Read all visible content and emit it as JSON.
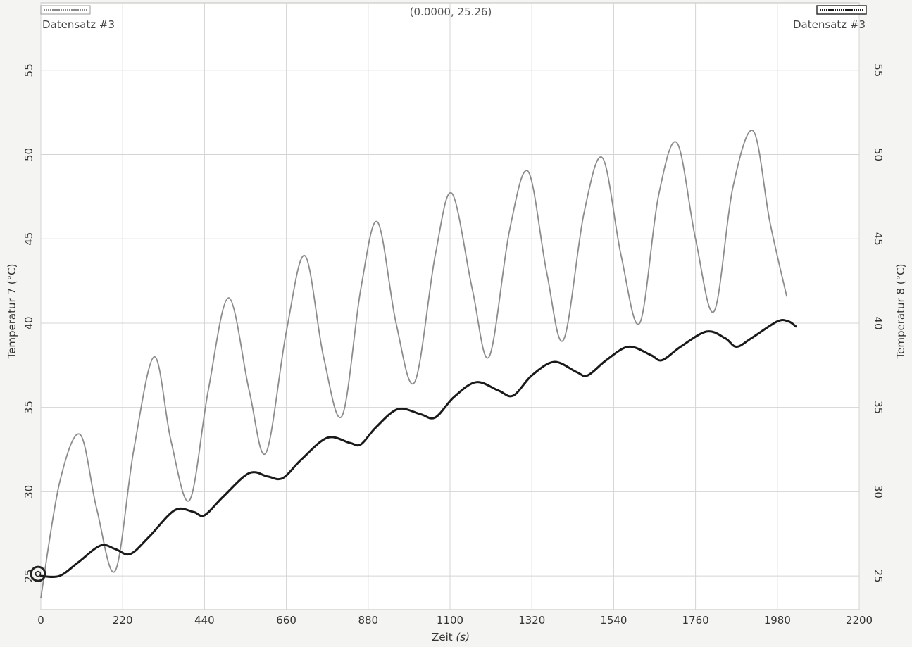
{
  "chart_data": {
    "type": "line",
    "readout": "(0.0000, 25.26)",
    "xlabel": "Zeit",
    "xunit": "(s)",
    "ylabel_left": "Temperatur 7 (°C)",
    "ylabel_right": "Temperatur 8 (°C)",
    "xlim": [
      0,
      2200
    ],
    "ylim_left": [
      23,
      59
    ],
    "ylim_right": [
      23,
      59
    ],
    "x_ticks": [
      0,
      220,
      440,
      660,
      880,
      1100,
      1320,
      1540,
      1760,
      1980,
      2200
    ],
    "y_ticks": [
      25,
      30,
      35,
      40,
      45,
      50,
      55
    ],
    "grid": true,
    "legend_left": "Datensatz #3",
    "legend_right": "Datensatz #3",
    "series": [
      {
        "axis": "left",
        "color": "#8c8c8c",
        "points": [
          [
            0,
            23.7
          ],
          [
            50,
            30.5
          ],
          [
            105,
            33.4
          ],
          [
            150,
            29.0
          ],
          [
            200,
            25.3
          ],
          [
            250,
            32.5
          ],
          [
            305,
            38.0
          ],
          [
            350,
            33.0
          ],
          [
            400,
            29.5
          ],
          [
            450,
            36.0
          ],
          [
            505,
            41.5
          ],
          [
            560,
            36.0
          ],
          [
            605,
            32.3
          ],
          [
            660,
            39.5
          ],
          [
            710,
            44.0
          ],
          [
            760,
            38.0
          ],
          [
            810,
            34.5
          ],
          [
            860,
            42.0
          ],
          [
            905,
            46.0
          ],
          [
            955,
            40.0
          ],
          [
            1005,
            36.5
          ],
          [
            1060,
            44.0
          ],
          [
            1105,
            47.7
          ],
          [
            1160,
            42.0
          ],
          [
            1205,
            38.0
          ],
          [
            1260,
            45.5
          ],
          [
            1310,
            49.0
          ],
          [
            1360,
            43.0
          ],
          [
            1405,
            39.0
          ],
          [
            1460,
            46.5
          ],
          [
            1510,
            49.8
          ],
          [
            1560,
            44.0
          ],
          [
            1610,
            40.0
          ],
          [
            1660,
            47.5
          ],
          [
            1710,
            50.7
          ],
          [
            1760,
            45.0
          ],
          [
            1810,
            40.7
          ],
          [
            1860,
            48.0
          ],
          [
            1915,
            51.4
          ],
          [
            1960,
            46.0
          ],
          [
            2005,
            41.6
          ]
        ]
      },
      {
        "axis": "right",
        "color": "#1a1a1a",
        "points": [
          [
            0,
            25.0
          ],
          [
            50,
            25.0
          ],
          [
            100,
            25.8
          ],
          [
            160,
            26.8
          ],
          [
            200,
            26.6
          ],
          [
            240,
            26.3
          ],
          [
            290,
            27.3
          ],
          [
            360,
            28.9
          ],
          [
            410,
            28.8
          ],
          [
            440,
            28.6
          ],
          [
            490,
            29.7
          ],
          [
            560,
            31.1
          ],
          [
            610,
            30.9
          ],
          [
            650,
            30.8
          ],
          [
            700,
            31.9
          ],
          [
            770,
            33.2
          ],
          [
            830,
            32.9
          ],
          [
            860,
            32.8
          ],
          [
            900,
            33.8
          ],
          [
            960,
            34.9
          ],
          [
            1020,
            34.6
          ],
          [
            1060,
            34.4
          ],
          [
            1110,
            35.6
          ],
          [
            1170,
            36.5
          ],
          [
            1230,
            36.0
          ],
          [
            1270,
            35.7
          ],
          [
            1320,
            36.9
          ],
          [
            1380,
            37.7
          ],
          [
            1440,
            37.1
          ],
          [
            1470,
            36.9
          ],
          [
            1520,
            37.8
          ],
          [
            1580,
            38.6
          ],
          [
            1640,
            38.1
          ],
          [
            1670,
            37.8
          ],
          [
            1720,
            38.6
          ],
          [
            1790,
            39.5
          ],
          [
            1840,
            39.1
          ],
          [
            1870,
            38.6
          ],
          [
            1910,
            39.1
          ],
          [
            1980,
            40.1
          ],
          [
            2010,
            40.1
          ],
          [
            2030,
            39.8
          ]
        ]
      }
    ]
  }
}
